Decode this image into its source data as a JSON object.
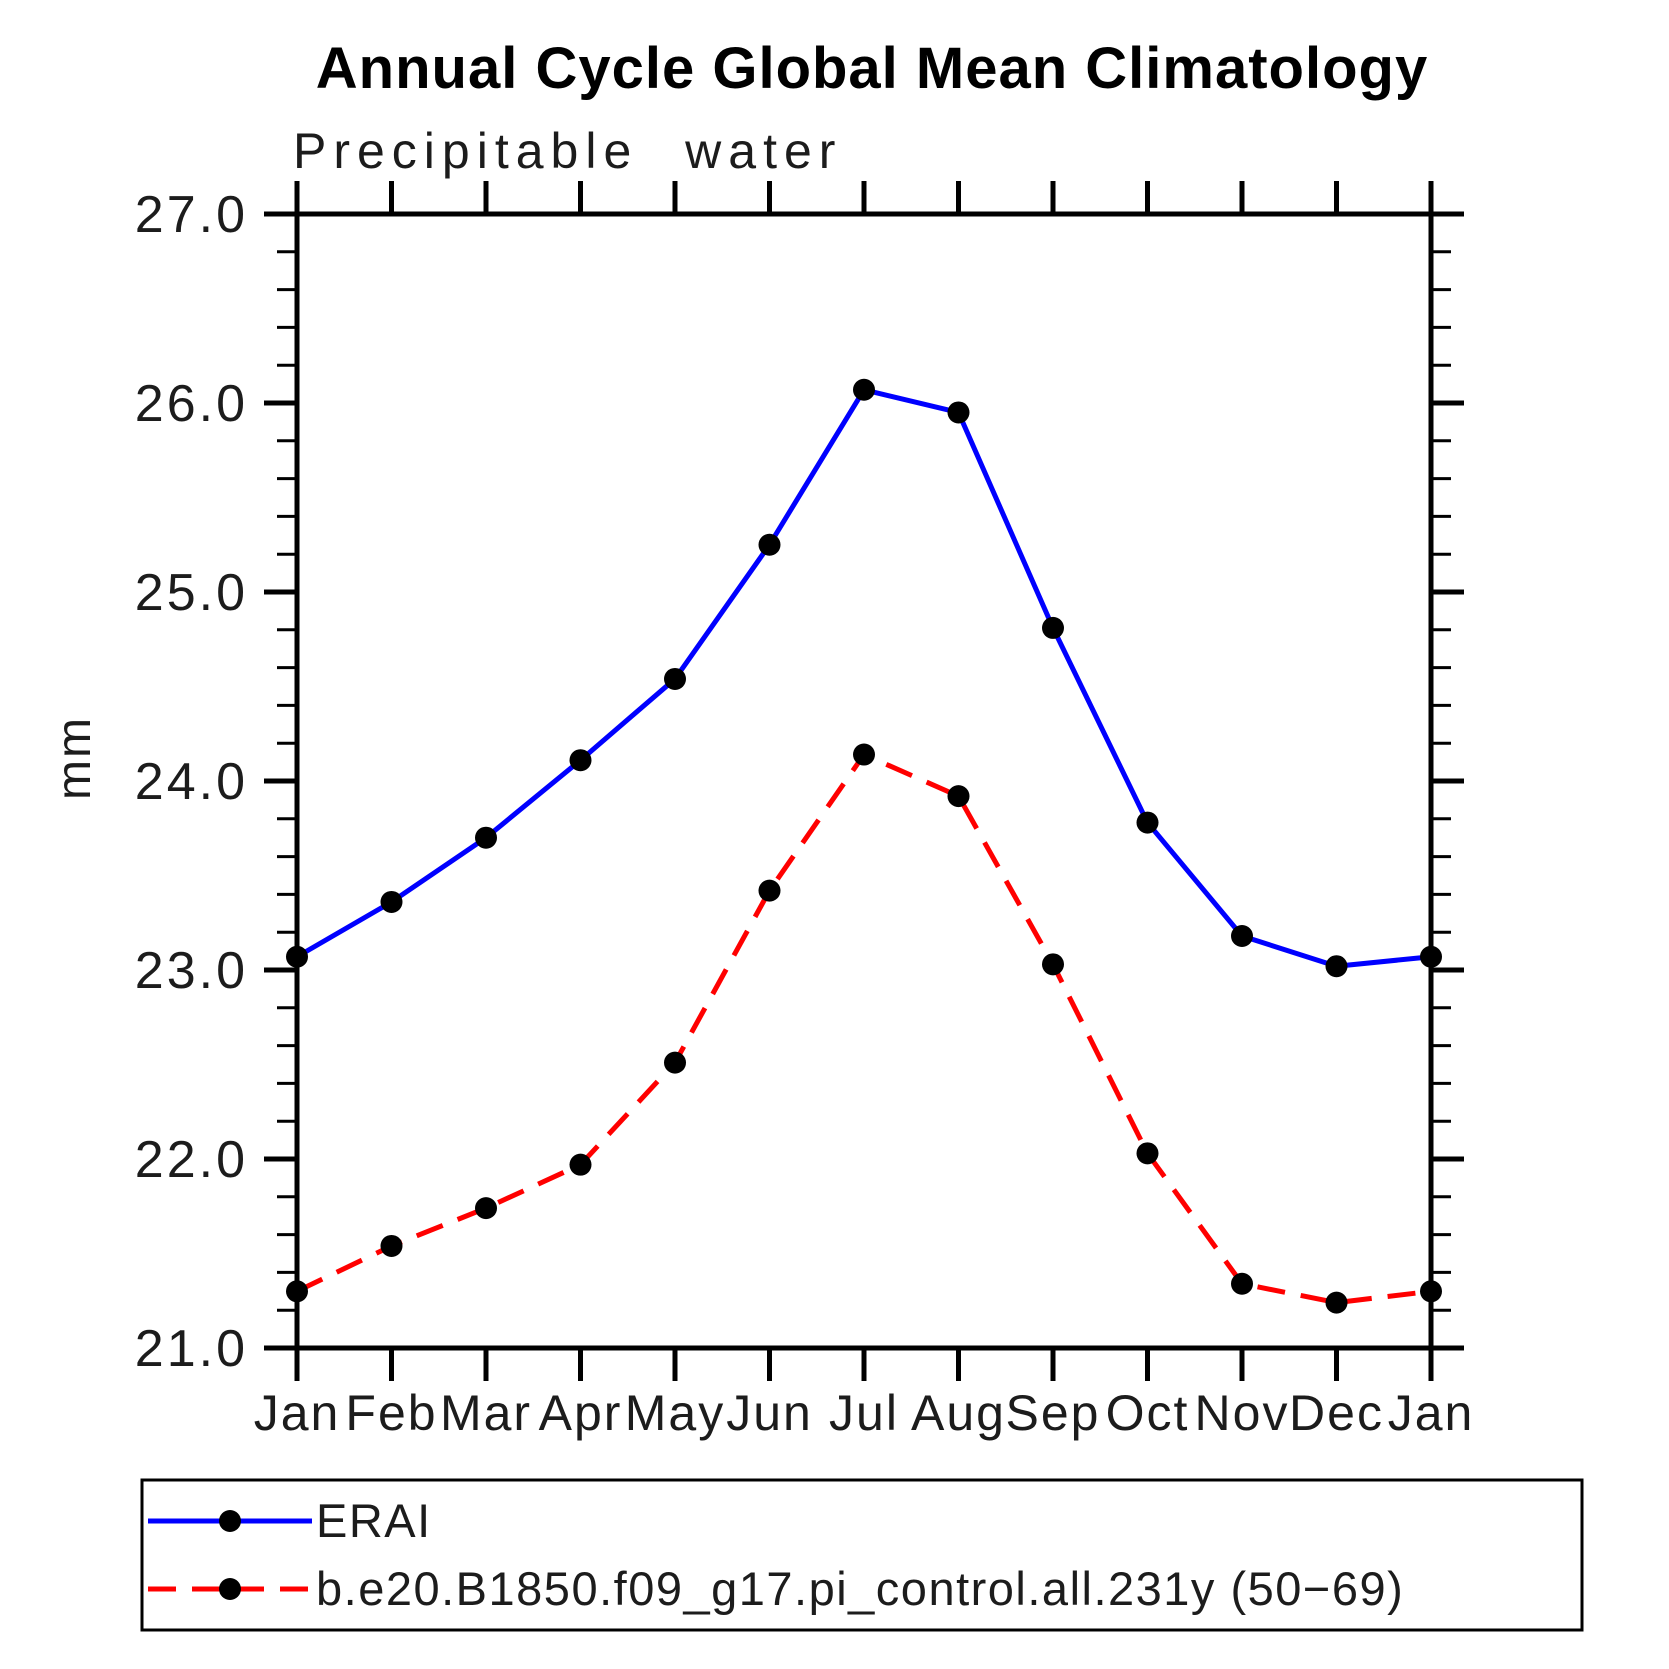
{
  "chart": {
    "title": "Annual Cycle Global Mean Climatology",
    "subtitle": "Precipitable water",
    "ylabel": "mm"
  },
  "chart_data": {
    "type": "line",
    "title": "Annual Cycle Global Mean Climatology",
    "subtitle": "Precipitable water",
    "xlabel": "",
    "ylabel": "mm",
    "categories": [
      "Jan",
      "Feb",
      "Mar",
      "Apr",
      "May",
      "Jun",
      "Jul",
      "Aug",
      "Sep",
      "Oct",
      "Nov",
      "Dec",
      "Jan"
    ],
    "ylim": [
      21.0,
      27.0
    ],
    "ytick_interval": 1.0,
    "ytick_labels": [
      "21.0",
      "22.0",
      "23.0",
      "24.0",
      "25.0",
      "26.0",
      "27.0"
    ],
    "y_minor_tick_interval": 0.2,
    "grid": false,
    "legend_position": "bottom-left-box",
    "series": [
      {
        "name": "ERAI",
        "color": "#0000FF",
        "line_style": "solid",
        "marker": "filled-circle",
        "marker_color": "#000000",
        "values": [
          23.07,
          23.36,
          23.7,
          24.11,
          24.54,
          25.25,
          26.07,
          25.95,
          24.81,
          23.78,
          23.18,
          23.02,
          23.07
        ]
      },
      {
        "name": "b.e20.B1850.f09_g17.pi_control.all.231y (50−69)",
        "color": "#FF0000",
        "line_style": "dashed",
        "marker": "filled-circle",
        "marker_color": "#000000",
        "values": [
          21.3,
          21.54,
          21.74,
          21.97,
          22.51,
          23.42,
          24.14,
          23.92,
          23.03,
          22.03,
          21.34,
          21.24,
          21.3
        ]
      }
    ]
  }
}
